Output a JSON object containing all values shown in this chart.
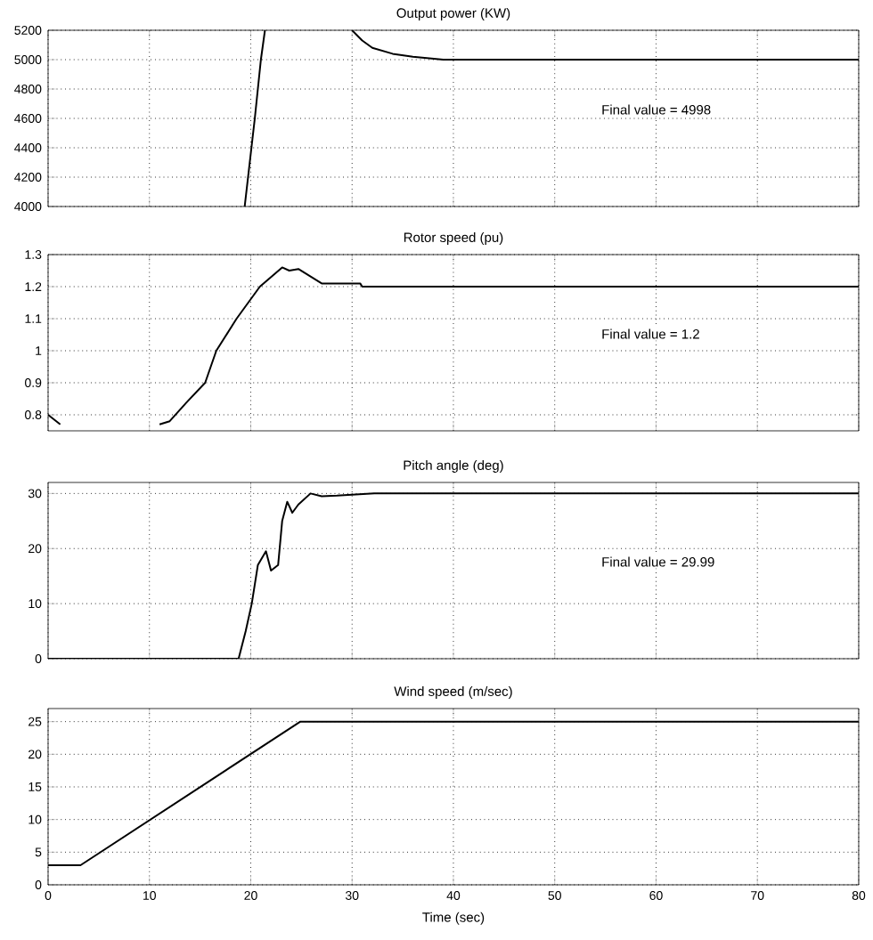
{
  "chart_data": [
    {
      "type": "line",
      "title": "Output power (KW)",
      "x": [
        19.4,
        20.4,
        21.0,
        21.4,
        21.5,
        30,
        31,
        32,
        34,
        36,
        39,
        80
      ],
      "values": [
        4000,
        4600,
        5000,
        5200,
        null,
        5200,
        5130,
        5080,
        5040,
        5020,
        5000,
        5000
      ],
      "color": "#000000",
      "xlim": [
        0,
        80
      ],
      "ylim": [
        4000,
        5200
      ],
      "xticks": [
        0,
        10,
        20,
        30,
        40,
        50,
        60,
        70,
        80
      ],
      "yticks": [
        4000,
        4200,
        4400,
        4600,
        4800,
        5000,
        5200
      ],
      "grid": true,
      "tick_labels": "y",
      "annotations": [
        "Final value = 4998"
      ]
    },
    {
      "type": "line",
      "title": "Rotor speed (pu)",
      "x": [
        0,
        1.2,
        5,
        11,
        12,
        13.7,
        15.5,
        16.6,
        18.6,
        20.9,
        23.1,
        23.8,
        24.7,
        27,
        30.8,
        31,
        80
      ],
      "values": [
        0.8,
        0.77,
        null,
        0.77,
        0.78,
        0.84,
        0.9,
        1.0,
        1.1,
        1.2,
        1.26,
        1.25,
        1.255,
        1.21,
        1.21,
        1.2,
        1.2
      ],
      "color": "#000000",
      "xlim": [
        0,
        80
      ],
      "ylim": [
        0.75,
        1.3
      ],
      "xticks": [
        0,
        10,
        20,
        30,
        40,
        50,
        60,
        70,
        80
      ],
      "yticks": [
        0.8,
        0.9,
        1,
        1.1,
        1.2,
        1.3
      ],
      "grid": true,
      "tick_labels": "y",
      "annotations": [
        "Final value =  1.2"
      ]
    },
    {
      "type": "line",
      "title": "Pitch angle (deg)",
      "x": [
        0,
        18.8,
        19.5,
        20.1,
        20.7,
        21.5,
        22.0,
        22.7,
        23.1,
        23.6,
        24.1,
        24.7,
        25.9,
        27.0,
        28.5,
        32.2,
        80
      ],
      "values": [
        0,
        0,
        5,
        10,
        17,
        19.5,
        16,
        17,
        25,
        28.5,
        26.5,
        28,
        30,
        29.5,
        29.6,
        30,
        30
      ],
      "color": "#000000",
      "xlim": [
        0,
        80
      ],
      "ylim": [
        0,
        32
      ],
      "xticks": [
        0,
        10,
        20,
        30,
        40,
        50,
        60,
        70,
        80
      ],
      "yticks": [
        0,
        10,
        20,
        30
      ],
      "grid": true,
      "tick_labels": "y",
      "annotations": [
        "Final value = 29.99"
      ]
    },
    {
      "type": "line",
      "title": "Wind speed (m/sec)",
      "xlabel": "Time (sec)",
      "x": [
        0,
        3.2,
        24.9,
        80
      ],
      "values": [
        3,
        3,
        25,
        25
      ],
      "color": "#000000",
      "xlim": [
        0,
        80
      ],
      "ylim": [
        0,
        27
      ],
      "xticks": [
        0,
        10,
        20,
        30,
        40,
        50,
        60,
        70,
        80
      ],
      "yticks": [
        0,
        5,
        10,
        15,
        20,
        25
      ],
      "grid": true
    }
  ]
}
